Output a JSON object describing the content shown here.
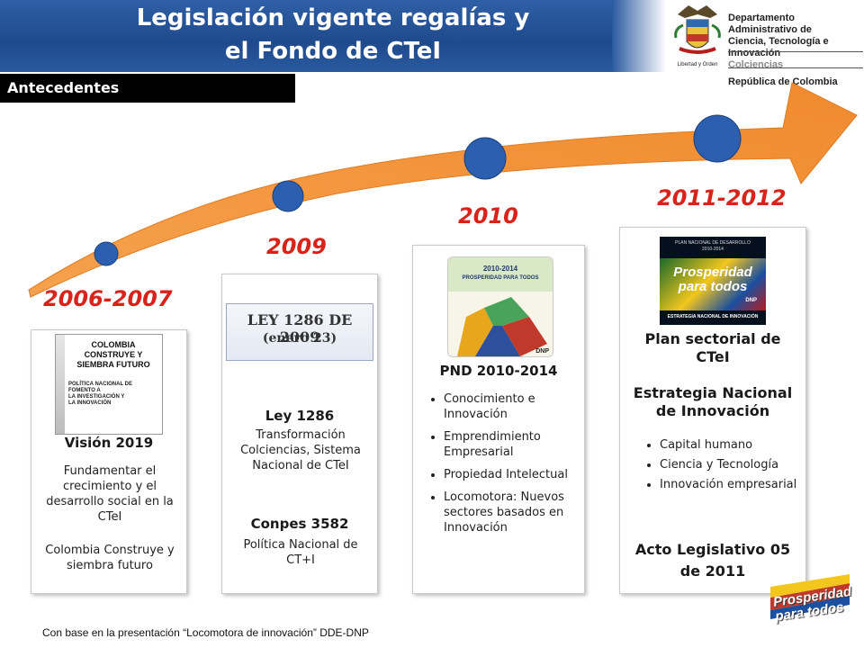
{
  "header": {
    "title_line1": "Legislación vigente regalías y",
    "title_line2": "el Fondo de CTeI",
    "org_line1": "Departamento Administrativo de",
    "org_line2": "Ciencia, Tecnología e Innovación",
    "org_line3": "Colciencias",
    "org_line4": "República de Colombia",
    "crest_motto": "Libertad y Orden"
  },
  "section_label": "Antecedentes",
  "colors": {
    "accent_blue": "#1f4a8c",
    "arrow_orange": "#f0913a",
    "year_red": "#d9231a",
    "dot_blue": "#2c5fb0"
  },
  "timeline": {
    "years": [
      "2006-2007",
      "2009",
      "2010",
      "2011-2012"
    ]
  },
  "cards": {
    "c1": {
      "image_text_1": "COLOMBIA",
      "image_text_2": "CONSTRUYE Y",
      "image_text_3": "SIEMBRA FUTURO",
      "image_sub_1": "POLÍTICA NACIONAL DE",
      "image_sub_2": "FOMENTO A",
      "image_sub_3": "LA INVESTIGACIÓN Y",
      "image_sub_4": "LA INNOVACIÓN",
      "title": "Visión 2019",
      "text1": "Fundamentar el crecimiento y el desarrollo social en la CTeI",
      "text2": "Colombia Construye y siembra futuro"
    },
    "c2": {
      "image_text_1": "LEY 1286 DE 2009",
      "image_text_2": "(enero 23)",
      "title": "Ley 1286",
      "text1": "Transformación Colciencias, Sistema Nacional de CTeI",
      "title2": "Conpes 3582",
      "text2": "Política Nacional de CT+I"
    },
    "c3": {
      "image_text_1": "2010-2014",
      "image_text_2": "PROSPERIDAD PARA TODOS",
      "image_text_3": "DNP",
      "title": "PND 2010-2014",
      "bullets": [
        "Conocimiento e Innovación",
        "Emprendimiento Empresarial",
        "Propiedad Intelectual",
        "Locomotora: Nuevos sectores basados en Innovación"
      ]
    },
    "c4": {
      "image_text_1": "PLAN NACIONAL DE DESARROLLO",
      "image_text_2": "2010-2014",
      "image_text_3": "Prosperidad",
      "image_text_4": "para todos",
      "image_text_5": "DNP",
      "image_text_6": "ESTRATEGIA NACIONAL DE INNOVACIÓN",
      "title": "Plan sectorial de CTeI",
      "title2": "Estrategia Nacional de Innovación",
      "bullets": [
        "Capital humano",
        "Ciencia y Tecnología",
        "Innovación empresarial"
      ],
      "title3": "Acto Legislativo 05 de 2011"
    }
  },
  "footer": "Con base en la presentación “Locomotora de innovación” DDE-DNP",
  "badge": {
    "line1": "Prosperidad",
    "line2": "para todos"
  }
}
